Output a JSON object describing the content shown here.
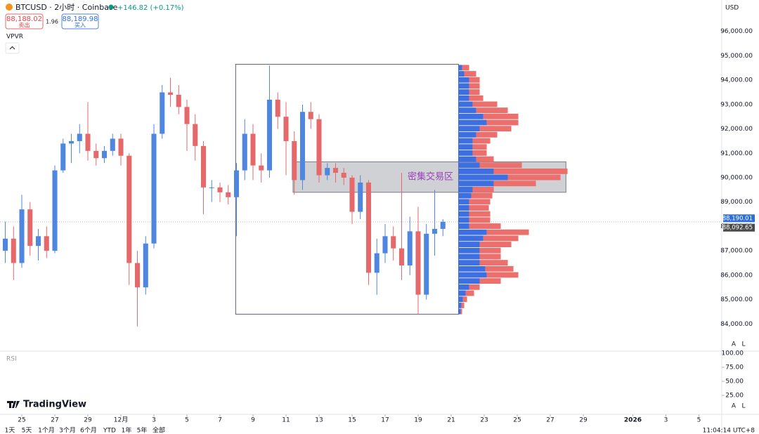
{
  "header": {
    "symbol": "BTCUSD · 2小时 · Coinbase",
    "change": "+146.82 (+0.17%)",
    "sell_price": "88,188.02",
    "sell_label": "卖出",
    "spread": "1.96",
    "buy_price": "88,189.98",
    "buy_label": "买入",
    "indicator": "VPVR",
    "currency": "USD",
    "rsi_label": "RSI",
    "brand": "TradingView"
  },
  "toolbar": {
    "ranges": [
      "1天",
      "5天",
      "1个月",
      "3个月",
      "6个月",
      "YTD",
      "1年",
      "5年",
      "全部"
    ],
    "time": "11:04:14 UTC+8",
    "axis_buttons": [
      "A",
      "L"
    ]
  },
  "chart_data": {
    "type": "candlestick",
    "up_color": "#4f86e0",
    "down_color": "#e5686b",
    "open": [
      87000,
      87500,
      86500,
      88700,
      87200,
      87600,
      87000,
      90300,
      91400,
      91500,
      91800,
      91100,
      90800,
      91100,
      91600,
      90900,
      86500,
      85500,
      87300,
      91800,
      93500,
      93400,
      92900,
      92200,
      91300,
      89600,
      89600,
      89400,
      89200,
      90300,
      91800,
      90500,
      90300,
      93200,
      92500,
      91500,
      89900,
      92700,
      92400,
      90100,
      90400,
      90200,
      90000,
      88600,
      89800,
      86100,
      86900,
      87600,
      87100,
      86400,
      87800,
      85200,
      87700,
      87900
    ],
    "high": [
      88200,
      88000,
      89300,
      89000,
      87900,
      88000,
      90500,
      91600,
      91800,
      92200,
      93100,
      91400,
      91300,
      91800,
      91800,
      91000,
      87000,
      87600,
      92200,
      93800,
      94100,
      93800,
      93200,
      92600,
      91500,
      89900,
      89800,
      89700,
      90600,
      92400,
      92200,
      91000,
      94600,
      93500,
      93100,
      91900,
      93000,
      93100,
      92600,
      90600,
      90600,
      90400,
      90100,
      90100,
      89900,
      87500,
      88100,
      88000,
      90200,
      88400,
      88800,
      88100,
      89500,
      88300
    ],
    "low": [
      86500,
      85800,
      86300,
      86800,
      86600,
      86700,
      86900,
      90200,
      90600,
      91000,
      90700,
      90500,
      90600,
      90900,
      90500,
      85600,
      83900,
      85200,
      87100,
      91600,
      92900,
      92600,
      91100,
      90700,
      88500,
      89000,
      89000,
      88900,
      87600,
      89900,
      89900,
      89800,
      90000,
      92000,
      90100,
      89300,
      89500,
      92000,
      89800,
      89900,
      89800,
      89700,
      88100,
      88300,
      85600,
      85200,
      86500,
      86600,
      85800,
      86000,
      84400,
      85000,
      86800,
      87600
    ],
    "close": [
      87500,
      86500,
      88700,
      87200,
      87600,
      87000,
      90300,
      91400,
      91500,
      91800,
      91100,
      90800,
      91100,
      91600,
      90900,
      86500,
      85500,
      87300,
      91800,
      93500,
      93400,
      92900,
      92200,
      91300,
      89600,
      89600,
      89400,
      89200,
      90300,
      91800,
      90500,
      90300,
      93200,
      92500,
      91500,
      89900,
      92700,
      92400,
      90100,
      90400,
      90200,
      90000,
      88600,
      89800,
      86100,
      86900,
      87600,
      87100,
      86400,
      87800,
      85200,
      87700,
      87900,
      88190
    ],
    "xlim": [
      -0.64,
      86.6
    ],
    "xticks": [
      {
        "value": 2,
        "label": "25"
      },
      {
        "value": 6,
        "label": "27"
      },
      {
        "value": 10,
        "label": "29"
      },
      {
        "value": 14,
        "label": "12月"
      },
      {
        "value": 18,
        "label": "3"
      },
      {
        "value": 22,
        "label": "5"
      },
      {
        "value": 26,
        "label": "7"
      },
      {
        "value": 30,
        "label": "9"
      },
      {
        "value": 34,
        "label": "11"
      },
      {
        "value": 38,
        "label": "13"
      },
      {
        "value": 42,
        "label": "15"
      },
      {
        "value": 46,
        "label": "17"
      },
      {
        "value": 50,
        "label": "19"
      },
      {
        "value": 54,
        "label": "21"
      },
      {
        "value": 58,
        "label": "23"
      },
      {
        "value": 62,
        "label": "25"
      },
      {
        "value": 66,
        "label": "27"
      },
      {
        "value": 70,
        "label": "29"
      },
      {
        "value": 76,
        "label": "2026"
      },
      {
        "value": 80,
        "label": "3"
      },
      {
        "value": 84,
        "label": "5"
      }
    ],
    "ylim": [
      83000,
      97000
    ],
    "yticks": [
      {
        "value": 96000,
        "label": "96,000.00"
      },
      {
        "value": 95000,
        "label": "95,000.00"
      },
      {
        "value": 94000,
        "label": "94,000.00"
      },
      {
        "value": 93000,
        "label": "93,000.00"
      },
      {
        "value": 92000,
        "label": "92,000.00"
      },
      {
        "value": 91000,
        "label": "91,000.00"
      },
      {
        "value": 90000,
        "label": "90,000.00"
      },
      {
        "value": 89000,
        "label": "89,000.00"
      },
      {
        "value": 88000,
        "label": "88,000.00"
      },
      {
        "value": 87000,
        "label": "87,000.00"
      },
      {
        "value": 86000,
        "label": "86,000.00"
      },
      {
        "value": 85000,
        "label": "85,000.00"
      },
      {
        "value": 84000,
        "label": "84,000.00"
      }
    ],
    "price_labels": [
      {
        "value": 88190.01,
        "label": "88,190.01",
        "color": "#2f6fdb"
      },
      {
        "value": 88092.65,
        "label": "88,092.65",
        "color": "#4a4a4a"
      }
    ],
    "range_box": {
      "x_start": 27.9,
      "x_end": 54.9,
      "high": 94650,
      "low": 84400
    },
    "zone": {
      "x_start": 34.85,
      "x_end": 67.9,
      "high": 90650,
      "low": 89400,
      "label": "密集交易区",
      "label_color": "#9c3fb8"
    },
    "volume_profile": {
      "buy_color": "#3d6fe0",
      "sell_color": "#ea6f6d",
      "prices": [
        84500,
        84750,
        85000,
        85250,
        85500,
        85750,
        86000,
        86250,
        86500,
        86750,
        87000,
        87250,
        87500,
        87750,
        88000,
        88250,
        88500,
        88750,
        89000,
        89250,
        89500,
        89750,
        90000,
        90250,
        90500,
        90750,
        91000,
        91250,
        91500,
        91750,
        92000,
        92250,
        92500,
        92750,
        93000,
        93250,
        93500,
        93750,
        94000,
        94250,
        94500
      ],
      "buy": [
        3,
        4,
        6,
        10,
        15,
        30,
        40,
        38,
        30,
        30,
        30,
        30,
        35,
        40,
        15,
        15,
        15,
        15,
        15,
        18,
        20,
        50,
        70,
        50,
        30,
        25,
        20,
        20,
        20,
        25,
        30,
        40,
        35,
        25,
        20,
        15,
        15,
        15,
        15,
        8,
        5
      ],
      "sell": [
        2,
        4,
        6,
        12,
        15,
        30,
        45,
        40,
        40,
        30,
        30,
        45,
        50,
        60,
        45,
        30,
        30,
        28,
        30,
        30,
        30,
        60,
        75,
        105,
        60,
        25,
        20,
        20,
        25,
        30,
        45,
        45,
        50,
        45,
        35,
        20,
        15,
        15,
        15,
        17,
        10
      ]
    },
    "rsi": {
      "ylim": [
        0,
        100
      ],
      "yticks": [
        {
          "value": 100,
          "label": "100.00"
        },
        {
          "value": 75,
          "label": "75.00"
        },
        {
          "value": 50,
          "label": "50.00"
        },
        {
          "value": 25,
          "label": "25.00"
        }
      ]
    }
  }
}
